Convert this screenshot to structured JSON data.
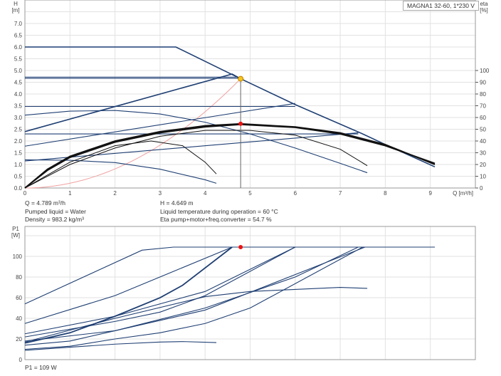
{
  "legend_label": "MAGNA1 32-60, 1*230 V",
  "info": {
    "q": "Q = 4.789 m³/h",
    "h": "H = 4.649 m",
    "liquid": "Pumped liquid = Water",
    "temp": "Liquid temperature during operation = 60 °C",
    "density": "Density = 983.2 kg/m³",
    "eta": "Eta pump+motor+freq.converter = 54.7 %",
    "p1": "P1 = 109 W"
  },
  "colors": {
    "curve": "#1f3f73",
    "eta": "#111111",
    "system": "#f0a0a0",
    "duty": "#f5c518",
    "marker": "#ee1111",
    "eta_axis": "#2f4f2f"
  },
  "chart_data": [
    {
      "type": "line",
      "title": "",
      "xlabel": "Q [m³/h]",
      "ylabel": "H\n[m]",
      "y2label": "eta\n[%]",
      "xlim": [
        0,
        10
      ],
      "ylim": [
        0,
        8
      ],
      "y2lim": [
        0,
        160
      ],
      "grid": true,
      "xticks": [
        0,
        1,
        2,
        3,
        4,
        5,
        6,
        7,
        8,
        9
      ],
      "yticks": [
        "0.0",
        "0.5",
        "1.0",
        "1.5",
        "2.0",
        "2.5",
        "3.0",
        "3.5",
        "4.0",
        "4.5",
        "5.0",
        "5.5",
        "6.0",
        "6.5",
        "7.0"
      ],
      "y2ticks": [
        0,
        10,
        20,
        30,
        40,
        50,
        60,
        70,
        80,
        90,
        100
      ],
      "head_series": [
        [
          [
            0,
            6.0
          ],
          [
            3.35,
            6.0
          ],
          [
            4.789,
            4.649
          ],
          [
            6,
            3.55
          ],
          [
            7.5,
            2.3
          ],
          [
            8,
            1.85
          ],
          [
            9.1,
            0.9
          ]
        ],
        [
          [
            0,
            2.4
          ],
          [
            4.6,
            4.85
          ],
          [
            4.789,
            4.649
          ]
        ],
        [
          [
            0,
            4.72
          ],
          [
            4.7,
            4.72
          ]
        ],
        [
          [
            0,
            4.67
          ],
          [
            4.75,
            4.67
          ]
        ],
        [
          [
            0,
            3.47
          ],
          [
            6.0,
            3.47
          ]
        ],
        [
          [
            0,
            2.3
          ],
          [
            7.4,
            2.3
          ]
        ],
        [
          [
            0,
            1.78
          ],
          [
            6.0,
            3.6
          ]
        ],
        [
          [
            0,
            1.15
          ],
          [
            7.4,
            2.35
          ]
        ],
        [
          [
            0,
            3.1
          ],
          [
            1,
            3.27
          ],
          [
            2,
            3.3
          ],
          [
            3,
            3.15
          ],
          [
            4,
            2.8
          ],
          [
            5,
            2.3
          ],
          [
            6,
            1.7
          ],
          [
            7,
            1.05
          ],
          [
            7.6,
            0.65
          ]
        ],
        [
          [
            0,
            1.2
          ],
          [
            1,
            1.18
          ],
          [
            2,
            1.08
          ],
          [
            3,
            0.8
          ],
          [
            4,
            0.35
          ],
          [
            4.25,
            0.2
          ]
        ]
      ],
      "eta_series": [
        [
          [
            0,
            0
          ],
          [
            0.5,
            16
          ],
          [
            1,
            27
          ],
          [
            2,
            40
          ],
          [
            3,
            48
          ],
          [
            4,
            53
          ],
          [
            4.789,
            54.7
          ],
          [
            6,
            52
          ],
          [
            7,
            47
          ],
          [
            7.5,
            42
          ],
          [
            8,
            37
          ],
          [
            9.1,
            20
          ]
        ],
        [
          [
            0,
            0
          ],
          [
            0.5,
            15
          ],
          [
            1,
            26
          ],
          [
            2,
            39
          ],
          [
            3,
            47
          ],
          [
            4,
            52
          ],
          [
            4.789,
            54
          ],
          [
            6,
            51.5
          ],
          [
            7,
            46
          ],
          [
            7.5,
            41
          ],
          [
            8,
            36
          ],
          [
            9.1,
            21
          ]
        ],
        [
          [
            0,
            0
          ],
          [
            1,
            22
          ],
          [
            2,
            36
          ],
          [
            2.8,
            40
          ],
          [
            3.5,
            36
          ],
          [
            4,
            22
          ],
          [
            4.25,
            12
          ]
        ],
        [
          [
            0,
            0
          ],
          [
            1,
            20
          ],
          [
            2,
            34
          ],
          [
            3,
            44
          ],
          [
            4,
            49
          ],
          [
            5,
            49
          ],
          [
            6,
            45
          ],
          [
            7,
            33
          ],
          [
            7.6,
            19
          ]
        ]
      ],
      "system_curve": {
        "q": 4.789,
        "h": 4.649
      },
      "duty_point": {
        "q": 4.789,
        "h": 4.649
      },
      "eta_point": {
        "q": 4.789,
        "eta": 54.7
      }
    },
    {
      "type": "line",
      "title": "",
      "ylabel": "P1\n[W]",
      "xlim": [
        0,
        10
      ],
      "ylim": [
        0,
        129
      ],
      "grid": true,
      "yticks": [
        0,
        20,
        40,
        60,
        80,
        100
      ],
      "series": [
        [
          [
            0,
            54
          ],
          [
            2.6,
            106
          ],
          [
            3.3,
            109
          ],
          [
            9.1,
            109
          ]
        ],
        [
          [
            0,
            35
          ],
          [
            2,
            62
          ],
          [
            4.6,
            109
          ]
        ],
        [
          [
            0,
            16
          ],
          [
            1,
            26
          ],
          [
            2,
            42
          ],
          [
            3,
            60
          ],
          [
            3.5,
            72
          ],
          [
            4.6,
            109
          ]
        ],
        [
          [
            0,
            25
          ],
          [
            2,
            42
          ],
          [
            4,
            66
          ],
          [
            6,
            109
          ]
        ],
        [
          [
            0,
            22
          ],
          [
            2,
            37
          ],
          [
            3,
            46
          ],
          [
            4,
            62
          ],
          [
            6,
            109
          ]
        ],
        [
          [
            0,
            18
          ],
          [
            2,
            28
          ],
          [
            4,
            50
          ],
          [
            6,
            80
          ],
          [
            7.4,
            109
          ]
        ],
        [
          [
            0,
            14
          ],
          [
            1,
            18
          ],
          [
            2,
            28
          ],
          [
            3,
            38
          ],
          [
            4,
            48
          ],
          [
            7.55,
            109
          ]
        ],
        [
          [
            0,
            17
          ],
          [
            2,
            40
          ],
          [
            4,
            61
          ],
          [
            5,
            66
          ],
          [
            6,
            68
          ],
          [
            7,
            70
          ],
          [
            7.6,
            69
          ]
        ],
        [
          [
            0,
            10
          ],
          [
            1,
            13
          ],
          [
            2,
            20
          ],
          [
            3,
            26
          ],
          [
            4,
            35
          ],
          [
            5,
            50
          ],
          [
            7.5,
            109
          ]
        ],
        [
          [
            0,
            9
          ],
          [
            1,
            12
          ],
          [
            2,
            15
          ],
          [
            3,
            17
          ],
          [
            3.5,
            17.5
          ],
          [
            4.25,
            16.5
          ]
        ]
      ],
      "marker": {
        "q": 4.789,
        "p1": 109
      }
    }
  ]
}
